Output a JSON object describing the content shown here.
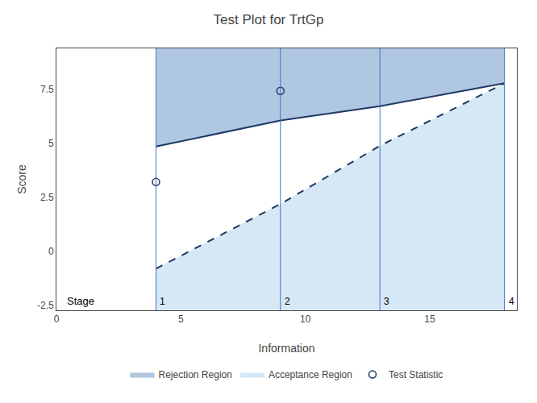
{
  "chart_data": {
    "type": "area",
    "title": "Test Plot for TrtGp",
    "xlabel": "Information",
    "ylabel": "Score",
    "x": [
      4.0,
      9.0,
      13.0,
      18.0
    ],
    "series": [
      {
        "name": "Rejection Region",
        "type": "fill_above",
        "color": "#afc7e0",
        "values": [
          4.85,
          6.05,
          6.72,
          7.78
        ]
      },
      {
        "name": "Acceptance Region",
        "type": "fill_below",
        "color": "#d6e8f5",
        "values": [
          -0.82,
          2.18,
          4.88,
          7.78
        ]
      },
      {
        "type": "line",
        "color": "#1f3864",
        "line_style": "solid",
        "values": [
          4.85,
          6.05,
          6.72,
          7.78
        ]
      },
      {
        "type": "line",
        "color": "#1f3864",
        "line_style": "dashed",
        "values": [
          -0.82,
          2.18,
          4.88,
          7.78
        ]
      },
      {
        "name": "Test Statistic",
        "type": "scatter",
        "marker": "circle-open",
        "color": "#1f3864",
        "x": [
          4.0,
          9.0
        ],
        "values": [
          3.2,
          7.43
        ]
      }
    ],
    "stages": {
      "x": [
        4.0,
        9.0,
        13.0,
        18.0
      ],
      "labels": [
        "1",
        "2",
        "3",
        "4"
      ],
      "color": "#4472c4"
    },
    "annotations": [
      {
        "text": "Stage"
      }
    ],
    "xlim": [
      0,
      18.5
    ],
    "ylim": [
      -2.75,
      9.4
    ],
    "xticks": [
      0,
      5,
      10,
      15
    ],
    "yticks": [
      -2.5,
      0,
      2.5,
      5,
      7.5
    ],
    "grid": false,
    "legend": "bottom"
  }
}
